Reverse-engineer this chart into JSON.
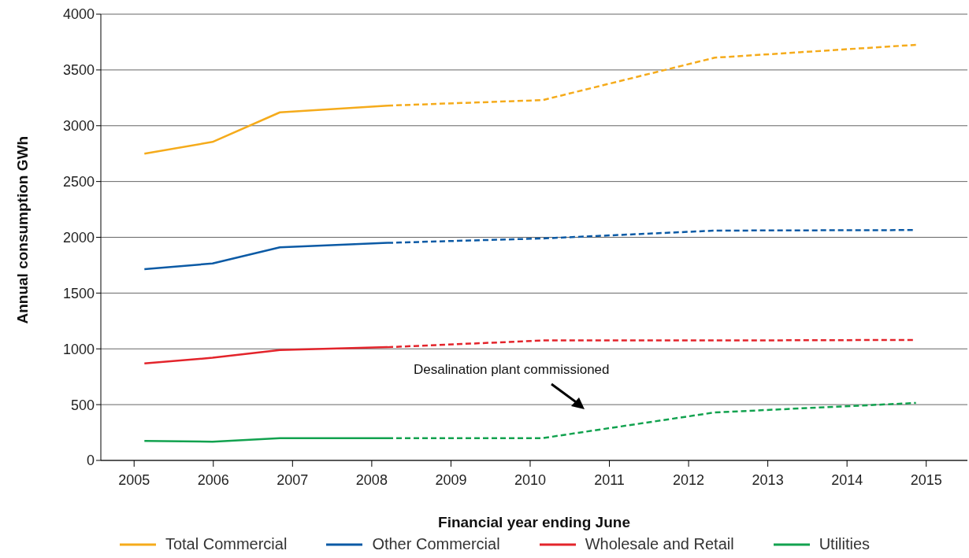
{
  "chart_data": {
    "type": "line",
    "xlabel": "Financial year ending June",
    "ylabel": "Annual consumption GWh",
    "xlim": [
      2004.58,
      2015.52
    ],
    "xticks": [
      2005,
      2006,
      2007,
      2008,
      2009,
      2010,
      2011,
      2012,
      2013,
      2014,
      2015
    ],
    "ylim": [
      0,
      4000
    ],
    "yticks": [
      0,
      500,
      1000,
      1500,
      2000,
      2500,
      3000,
      3500,
      4000
    ],
    "grid": "y",
    "legend": "bottom",
    "marker": "none",
    "series": [
      {
        "name": "Total Commercial",
        "color": "#f5ab1b",
        "line_style": "solid",
        "x": [
          2005.13,
          2005.99,
          2006.84,
          2008.2
        ],
        "values": [
          2750,
          2855,
          3120,
          3180
        ]
      },
      {
        "color": "#f5ab1b",
        "line_style": "dashed",
        "x": [
          2008.2,
          2010.16,
          2012.33,
          2014.87
        ],
        "values": [
          3180,
          3230,
          3610,
          3725
        ]
      },
      {
        "name": "Other Commercial",
        "color": "#0b5aa5",
        "line_style": "solid",
        "x": [
          2005.13,
          2005.99,
          2006.84,
          2008.2
        ],
        "values": [
          1715,
          1765,
          1910,
          1950
        ]
      },
      {
        "color": "#0b5aa5",
        "line_style": "dashed",
        "x": [
          2008.2,
          2010.16,
          2012.33,
          2014.87
        ],
        "values": [
          1950,
          1990,
          2060,
          2065
        ]
      },
      {
        "name": "Wholesale and Retail",
        "color": "#e3242b",
        "line_style": "solid",
        "x": [
          2005.13,
          2005.99,
          2006.84,
          2008.2
        ],
        "values": [
          870,
          920,
          990,
          1015
        ]
      },
      {
        "color": "#e3242b",
        "line_style": "dashed",
        "x": [
          2008.2,
          2010.16,
          2012.33,
          2014.87
        ],
        "values": [
          1015,
          1075,
          1075,
          1080
        ]
      },
      {
        "name": "Utilities",
        "color": "#12a24f",
        "line_style": "solid",
        "x": [
          2005.13,
          2005.99,
          2006.84,
          2008.2
        ],
        "values": [
          175,
          168,
          200,
          200
        ]
      },
      {
        "color": "#12a24f",
        "line_style": "dashed",
        "x": [
          2008.2,
          2010.16,
          2012.33,
          2014.87
        ],
        "values": [
          200,
          200,
          430,
          515
        ]
      }
    ],
    "annotations": [
      "Desalination plant commissioned"
    ]
  }
}
